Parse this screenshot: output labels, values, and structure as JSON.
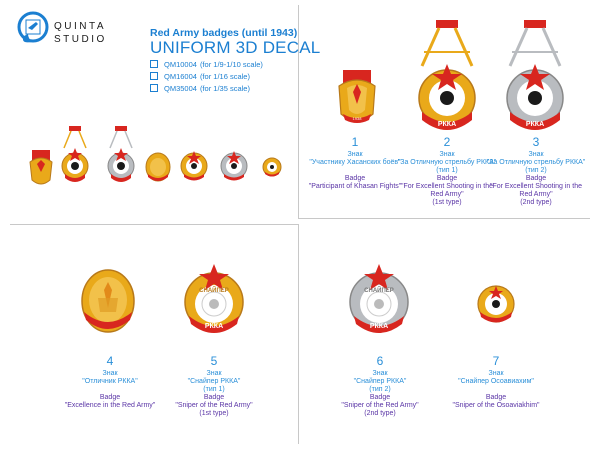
{
  "brand": {
    "line1": "QUINTA",
    "line2": "STUDIO"
  },
  "product": {
    "title": "Red Army badges (until 1943)",
    "decal": "UNIFORM 3D DECAL",
    "scales": [
      {
        "code": "QM10004",
        "text": "(for 1/9-1/10 scale)"
      },
      {
        "code": "QM16004",
        "text": "(for 1/16 scale)"
      },
      {
        "code": "QM35004",
        "text": "(for 1/35 scale)"
      }
    ]
  },
  "badges": [
    {
      "number": "1",
      "ru_label": "Знак",
      "ru_name": "\"Участнику Хасанских боёв\"",
      "ru_type": "",
      "en_label": "Badge",
      "en_name": "\"Participant of Khasan Fights\"",
      "en_type": ""
    },
    {
      "number": "2",
      "ru_label": "Знак",
      "ru_name": "\"За Отличную стрельбу РККА\"",
      "ru_type": "(тип 1)",
      "en_label": "Badge",
      "en_name": "\"For Excellent Shooting in the Red Army\"",
      "en_type": "(1st type)"
    },
    {
      "number": "3",
      "ru_label": "Знак",
      "ru_name": "\"За Отличную стрельбу РККА\"",
      "ru_type": "(тип 2)",
      "en_label": "Badge",
      "en_name": "\"For Excellent Shooting in the Red Army\"",
      "en_type": "(2nd type)"
    },
    {
      "number": "4",
      "ru_label": "Знак",
      "ru_name": "\"Отличник РККА\"",
      "ru_type": "",
      "en_label": "Badge",
      "en_name": "\"Excellence in the Red Army\"",
      "en_type": ""
    },
    {
      "number": "5",
      "ru_label": "Знак",
      "ru_name": "\"Снайпер РККА\"",
      "ru_type": "(тип 1)",
      "en_label": "Badge",
      "en_name": "\"Sniper of the Red Army\"",
      "en_type": "(1st type)"
    },
    {
      "number": "6",
      "ru_label": "Знак",
      "ru_name": "\"Снайпер РККА\"",
      "ru_type": "(тип 2)",
      "en_label": "Badge",
      "en_name": "\"Sniper of the Red Army\"",
      "en_type": "(2nd type)"
    },
    {
      "number": "7",
      "ru_label": "Знак",
      "ru_name": "\"Снайпер Осоавиахим\"",
      "ru_type": "",
      "en_label": "Badge",
      "en_name": "\"Sniper of the Osoaviakhim\"",
      "en_type": ""
    }
  ],
  "badge_text": {
    "rkka": "РККА",
    "sniper": "СНАЙПЕР",
    "khasan": "ХАСАН",
    "khasan_year": "1938"
  },
  "colors": {
    "accent_blue": "#1b7fd1",
    "caption_blue": "#2a8fd8",
    "caption_purple": "#5a35a6",
    "badge_red": "#d8261f",
    "badge_gold": "#e9a91a",
    "badge_silver": "#b9bcc0"
  },
  "icons": {
    "logo": "quinta-studio-logo-icon",
    "checkbox": "checkbox-icon"
  }
}
